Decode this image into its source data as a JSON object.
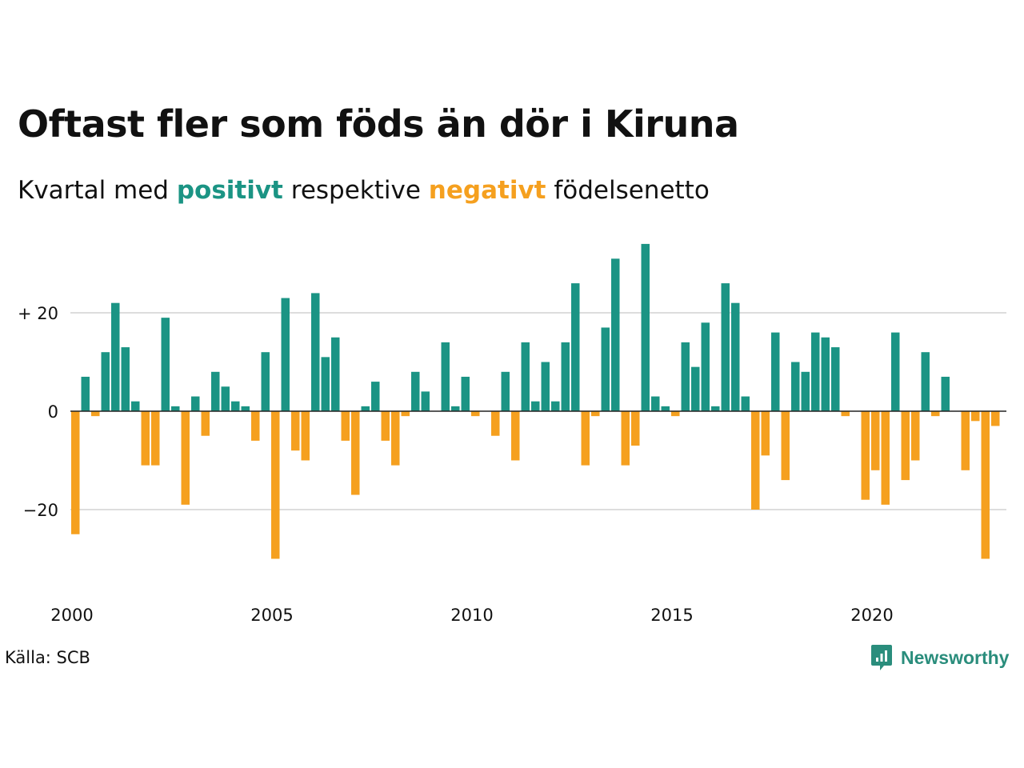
{
  "title": "Oftast fler som föds än dör i Kiruna",
  "subtitle": {
    "before": "Kvartal med",
    "positive": "positivt",
    "middle": "respektive",
    "negative": "negativt",
    "after": "födelsenetto"
  },
  "source": "Källa: SCB",
  "brand": {
    "name": "Newsworthy",
    "icon": "newsworthy-logo-icon"
  },
  "colors": {
    "positive": "#1b9484",
    "negative": "#f5a01f",
    "text": "#111111",
    "grid": "#dddddd",
    "zero_line": "#222222",
    "brand": "#2a8d7c"
  },
  "chart_data": {
    "type": "bar",
    "title": "Oftast fler som föds än dör i Kiruna",
    "subtitle": "Kvartal med positivt respektive negativt födelsenetto",
    "xlabel": "",
    "ylabel": "",
    "x_start_year": 2000,
    "periods_per_year": 4,
    "ylim": [
      -35,
      36
    ],
    "yticks": [
      {
        "value": 20,
        "label": "+ 20"
      },
      {
        "value": 0,
        "label": "0"
      },
      {
        "value": -20,
        "label": "−20"
      }
    ],
    "xticks": [
      {
        "year": 2000,
        "label": "2000"
      },
      {
        "year": 2005,
        "label": "2005"
      },
      {
        "year": 2010,
        "label": "2010"
      },
      {
        "year": 2015,
        "label": "2015"
      },
      {
        "year": 2020,
        "label": "2020"
      }
    ],
    "grid": true,
    "legend": "subtitle",
    "values": [
      -25,
      7,
      -1,
      12,
      22,
      13,
      2,
      -11,
      -11,
      19,
      1,
      -19,
      3,
      -5,
      8,
      5,
      2,
      1,
      -6,
      12,
      -30,
      23,
      -8,
      -10,
      24,
      11,
      15,
      -6,
      -17,
      1,
      6,
      -6,
      -11,
      -1,
      8,
      4,
      0,
      14,
      1,
      7,
      -1,
      0,
      -5,
      8,
      -10,
      14,
      2,
      10,
      2,
      14,
      26,
      -11,
      -1,
      17,
      31,
      -11,
      -7,
      34,
      3,
      1,
      -1,
      14,
      9,
      18,
      1,
      26,
      22,
      3,
      -20,
      -9,
      16,
      -14,
      10,
      8,
      16,
      15,
      13,
      -1,
      0,
      -18,
      -12,
      -19,
      16,
      -14,
      -10,
      12,
      -1,
      7,
      0,
      -12,
      -2,
      -30,
      -3
    ]
  }
}
